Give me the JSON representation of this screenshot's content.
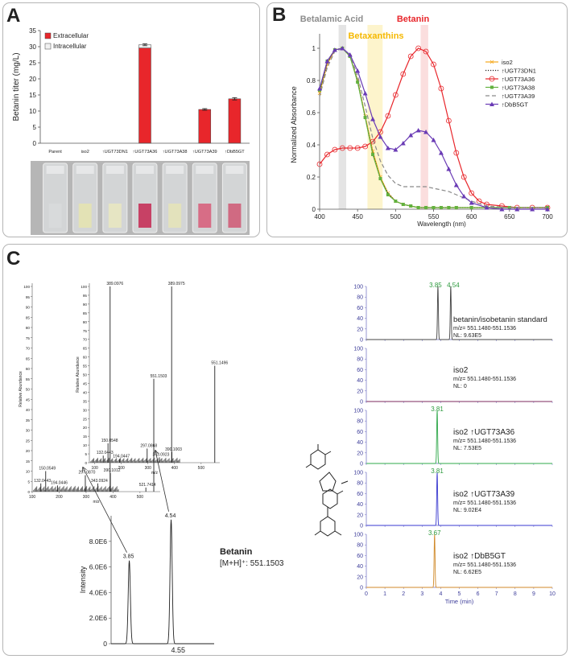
{
  "panels": {
    "a": "A",
    "b": "B",
    "c": "C"
  },
  "colors": {
    "red": "#e8262b",
    "purple": "#6a3bb5",
    "green": "#62b13f",
    "orange": "#f5a81c",
    "gray": "#777777",
    "ms": "#333333"
  },
  "chart_data": [
    {
      "id": "A",
      "type": "bar",
      "ylabel": "Betanin titer (mg/L)",
      "ylim": [
        0,
        35
      ],
      "yticks": [
        0,
        5,
        10,
        15,
        20,
        25,
        30,
        35
      ],
      "categories": [
        "Parent",
        "iso2",
        "↑UGT73DN1",
        "↑UGT73A36",
        "↑UGT73A38",
        "↑UGT73A39",
        "↑DbB5GT"
      ],
      "series": [
        {
          "name": "Extracellular",
          "values": [
            0,
            0,
            0,
            29.6,
            0,
            10.5,
            13.8
          ]
        },
        {
          "name": "Intracellular",
          "values": [
            0,
            0,
            0,
            1.0,
            0,
            0,
            0
          ]
        }
      ],
      "errors": [
        0,
        0,
        0,
        0.3,
        0,
        0.25,
        0.35
      ],
      "tube_colors": [
        "#d8dadb",
        "#e3e2b5",
        "#e6e5c3",
        "#c74165",
        "#e3e2bc",
        "#d76d86",
        "#d06a82"
      ]
    },
    {
      "id": "B",
      "type": "line",
      "xlabel": "Wavelength (nm)",
      "ylabel": "Normalized Absorbance",
      "xlim": [
        400,
        700
      ],
      "ylim": [
        0,
        1.05
      ],
      "xticks": [
        400,
        450,
        500,
        550,
        600,
        650,
        700
      ],
      "yticks": [
        0,
        0.2,
        0.4,
        0.6,
        0.8,
        1
      ],
      "bands": [
        {
          "label": "Betalamic Acid",
          "from": 425,
          "to": 435,
          "color": "#e4e4e4",
          "label_color": "#8c8c8c"
        },
        {
          "label": "Betaxanthins",
          "from": 463,
          "to": 483,
          "color": "#fdf4cc",
          "label_color": "#f5b800"
        },
        {
          "label": "Betanin",
          "from": 533,
          "to": 543,
          "color": "#fbdede",
          "label_color": "#e8262b"
        }
      ],
      "series": [
        {
          "name": "iso2",
          "color": "#f5a81c",
          "style": "solid",
          "marker": "x",
          "x": [
            400,
            410,
            420,
            430,
            440,
            450,
            460,
            470,
            480,
            490,
            500,
            510,
            520,
            530,
            540,
            550,
            560,
            570,
            580,
            600,
            620,
            650,
            700
          ],
          "y": [
            0.72,
            0.9,
            0.99,
            1.0,
            0.95,
            0.8,
            0.58,
            0.36,
            0.2,
            0.1,
            0.05,
            0.03,
            0.02,
            0.01,
            0.01,
            0.01,
            0.01,
            0.01,
            0.01,
            0.01,
            0.01,
            0.01,
            0.01
          ]
        },
        {
          "name": "↑UGT73DN1",
          "color": "#222222",
          "style": "dotted",
          "marker": "none",
          "x": [
            400,
            410,
            420,
            430,
            440,
            450,
            460,
            470,
            480,
            490,
            500,
            510,
            520,
            530,
            540,
            550,
            560,
            570,
            580,
            600,
            620,
            650,
            700
          ],
          "y": [
            0.73,
            0.91,
            0.99,
            1.0,
            0.95,
            0.8,
            0.57,
            0.35,
            0.19,
            0.1,
            0.05,
            0.03,
            0.02,
            0.01,
            0.01,
            0.01,
            0.01,
            0.01,
            0.01,
            0.01,
            0.01,
            0.01,
            0.01
          ]
        },
        {
          "name": "↑UGT73A36",
          "color": "#e8262b",
          "style": "solid",
          "marker": "circle",
          "x": [
            400,
            410,
            420,
            430,
            440,
            450,
            460,
            470,
            480,
            490,
            500,
            510,
            520,
            530,
            540,
            550,
            560,
            570,
            580,
            590,
            600,
            610,
            620,
            640,
            660,
            680,
            700
          ],
          "y": [
            0.28,
            0.34,
            0.37,
            0.38,
            0.38,
            0.38,
            0.39,
            0.42,
            0.48,
            0.58,
            0.71,
            0.84,
            0.95,
            1.0,
            0.98,
            0.9,
            0.75,
            0.55,
            0.35,
            0.2,
            0.1,
            0.05,
            0.03,
            0.02,
            0.01,
            0.01,
            0.01
          ]
        },
        {
          "name": "↑UGT73A38",
          "color": "#62b13f",
          "style": "solid",
          "marker": "square",
          "x": [
            400,
            410,
            420,
            430,
            440,
            450,
            460,
            470,
            480,
            490,
            500,
            510,
            520,
            530,
            540,
            550,
            560,
            570,
            580,
            600,
            620,
            650,
            700
          ],
          "y": [
            0.74,
            0.92,
            0.99,
            1.0,
            0.95,
            0.79,
            0.57,
            0.34,
            0.19,
            0.09,
            0.05,
            0.03,
            0.02,
            0.01,
            0.01,
            0.01,
            0.01,
            0.01,
            0.01,
            0.01,
            0.01,
            0.01,
            0.01
          ]
        },
        {
          "name": "↑UGT73A39",
          "color": "#8a8a8a",
          "style": "dashed",
          "marker": "none",
          "x": [
            400,
            410,
            420,
            430,
            440,
            450,
            460,
            470,
            480,
            490,
            500,
            510,
            520,
            530,
            540,
            550,
            560,
            570,
            580,
            600,
            620,
            650,
            700
          ],
          "y": [
            0.7,
            0.88,
            0.98,
            1.0,
            0.96,
            0.83,
            0.64,
            0.44,
            0.3,
            0.21,
            0.16,
            0.14,
            0.14,
            0.14,
            0.14,
            0.13,
            0.12,
            0.11,
            0.09,
            0.05,
            0.02,
            0.01,
            0.01
          ]
        },
        {
          "name": "↑DbB5GT",
          "color": "#6a3bb5",
          "style": "solid",
          "marker": "triangle",
          "x": [
            400,
            410,
            420,
            430,
            440,
            450,
            460,
            470,
            480,
            490,
            500,
            510,
            520,
            530,
            540,
            550,
            560,
            570,
            580,
            590,
            600,
            620,
            640,
            660,
            680,
            700
          ],
          "y": [
            0.75,
            0.92,
            0.99,
            1.0,
            0.96,
            0.86,
            0.72,
            0.56,
            0.45,
            0.38,
            0.37,
            0.41,
            0.46,
            0.49,
            0.48,
            0.43,
            0.35,
            0.25,
            0.15,
            0.08,
            0.04,
            0.01,
            0.0,
            0.0,
            0.0,
            0.0
          ]
        }
      ]
    },
    {
      "id": "C-MS1",
      "type": "bar",
      "xlabel": "m/z",
      "ylabel": "Relative Abundance",
      "xlim": [
        100,
        575
      ],
      "ylim": [
        0,
        100
      ],
      "xticks": [
        100,
        200,
        300,
        400,
        500
      ],
      "yticks": [
        0,
        5,
        10,
        15,
        20,
        25,
        30,
        35,
        40,
        45,
        50,
        55,
        60,
        65,
        70,
        75,
        80,
        85,
        90,
        95,
        100
      ],
      "peaks": [
        {
          "mz": 132.0443,
          "ab": 4,
          "label": "132.0443"
        },
        {
          "mz": 150.0549,
          "ab": 10,
          "label": "150.0549"
        },
        {
          "mz": 194.0446,
          "ab": 3,
          "label": "194.0446"
        },
        {
          "mz": 297.087,
          "ab": 8,
          "label": "297.0870"
        },
        {
          "mz": 343.0924,
          "ab": 4,
          "label": "343.0924"
        },
        {
          "mz": 389.0976,
          "ab": 100,
          "label": "389.0976"
        },
        {
          "mz": 390.1012,
          "ab": 9,
          "label": "390.1012"
        },
        {
          "mz": 521.7414,
          "ab": 2,
          "label": "521.7414"
        },
        {
          "mz": 551.1503,
          "ab": 55,
          "label": "551.1503"
        }
      ]
    },
    {
      "id": "C-MS2",
      "type": "bar",
      "xlabel": "m/z",
      "ylabel": "Relative Abundance",
      "xlim": [
        80,
        570
      ],
      "ylim": [
        0,
        100
      ],
      "xticks": [
        100,
        200,
        300,
        400,
        500
      ],
      "yticks": [
        0,
        5,
        10,
        15,
        20,
        25,
        30,
        35,
        40,
        45,
        50,
        55,
        60,
        65,
        70,
        75,
        80,
        85,
        90,
        95,
        100
      ],
      "peaks": [
        {
          "mz": 132.0443,
          "ab": 4,
          "label": "132.0443"
        },
        {
          "mz": 150.0548,
          "ab": 11,
          "label": "150.0548"
        },
        {
          "mz": 194.0447,
          "ab": 2,
          "label": "194.0447"
        },
        {
          "mz": 297.0868,
          "ab": 8,
          "label": "297.0868"
        },
        {
          "mz": 343.0923,
          "ab": 3,
          "label": "343.0923"
        },
        {
          "mz": 389.0975,
          "ab": 100,
          "label": "389.0975"
        },
        {
          "mz": 390.1003,
          "ab": 6,
          "label": "390.1003"
        },
        {
          "mz": 551.1496,
          "ab": 55,
          "label": "551.1496"
        }
      ]
    },
    {
      "id": "C-chrom",
      "type": "line",
      "ylabel": "Intensity",
      "ylim": [
        0,
        10000000
      ],
      "yticks": [
        0,
        2000000,
        4000000,
        6000000,
        8000000
      ],
      "yticklabels": [
        "0",
        "2.0E6",
        "4.0E6",
        "6.0E6",
        "8.0E6"
      ],
      "xlim": [
        3.55,
        5.25
      ],
      "peaks": [
        {
          "rt": 3.85,
          "height": 6500000,
          "label": "3.85"
        },
        {
          "rt": 4.54,
          "height": 9700000,
          "label": "4.54"
        }
      ],
      "x_marker": "4.55",
      "compound": "Betanin",
      "ion": "[M+H]⁺: 551.1503"
    },
    {
      "id": "C-EIC",
      "type": "line",
      "xlabel": "Time (min)",
      "xlim": [
        0,
        10
      ],
      "ylim": [
        0,
        100
      ],
      "xticks": [
        0,
        1,
        2,
        3,
        4,
        5,
        6,
        7,
        8,
        9,
        10
      ],
      "yticks": [
        0,
        20,
        40,
        60,
        80,
        100
      ],
      "traces": [
        {
          "title": "betanin/isobetanin standard",
          "mz": "m/z= 551.1480-551.1536",
          "nl": "NL: 9.63E5",
          "color": "#444444",
          "peaks": [
            {
              "rt": 3.85,
              "h": 100
            },
            {
              "rt": 4.54,
              "h": 100
            }
          ],
          "peak_labels": [
            "3.85",
            "4.54"
          ]
        },
        {
          "title": "iso2",
          "mz": "m/z= 551.1480-551.1536",
          "nl": "NL: 0",
          "color": "#7d2a5e",
          "peaks": [],
          "peak_labels": []
        },
        {
          "title": "iso2 ↑UGT73A36",
          "mz": "m/z= 551.1480-551.1536",
          "nl": "NL: 7.53E5",
          "color": "#2fa84a",
          "peaks": [
            {
              "rt": 3.81,
              "h": 100
            }
          ],
          "peak_labels": [
            "3.81"
          ]
        },
        {
          "title": "iso2 ↑UGT73A39",
          "mz": "m/z= 551.1480-551.1536",
          "nl": "NL: 9.02E4",
          "color": "#3a3ad0",
          "peaks": [
            {
              "rt": 3.81,
              "h": 100
            }
          ],
          "peak_labels": [
            "3.81"
          ]
        },
        {
          "title": "iso2 ↑DbB5GT",
          "mz": "m/z= 551.1480-551.1536",
          "nl": "NL: 6.62E5",
          "color": "#d08a2a",
          "peaks": [
            {
              "rt": 3.67,
              "h": 100
            }
          ],
          "peak_labels": [
            "3.67"
          ]
        }
      ]
    }
  ]
}
